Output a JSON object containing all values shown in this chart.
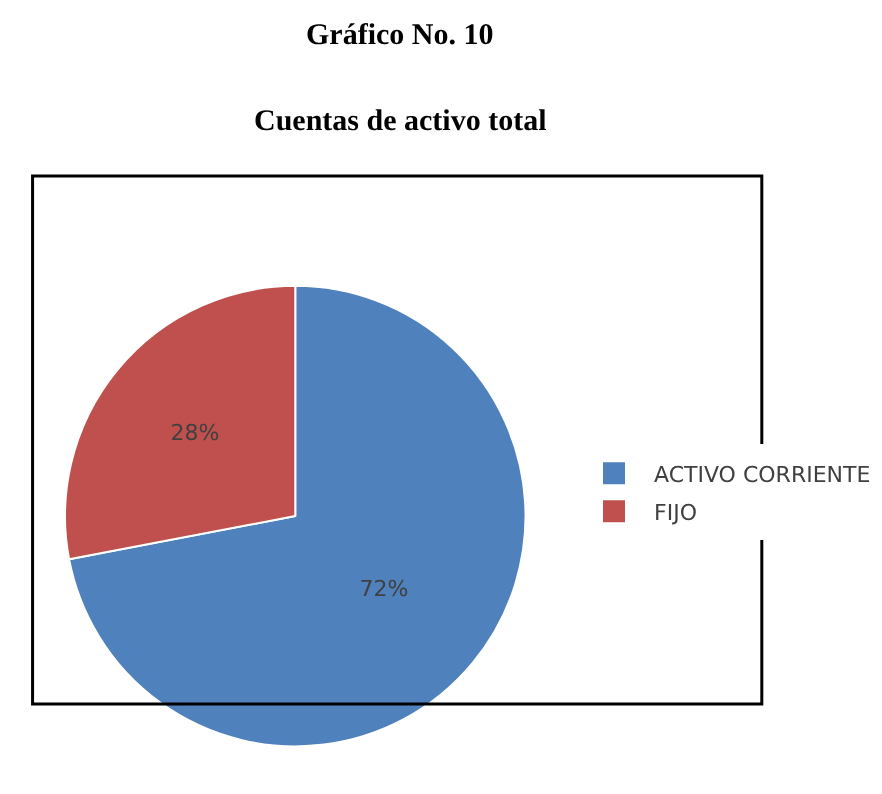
{
  "chart_data": {
    "type": "pie",
    "title": "Gráfico No. 10",
    "subtitle": "Cuentas de activo total",
    "categories": [
      "ACTIVO CORRIENTE",
      "FIJO"
    ],
    "values": [
      72,
      28
    ],
    "colors": [
      "#4f81bd",
      "#c0504d"
    ],
    "value_labels": [
      "72%",
      "28%"
    ],
    "legend": "right"
  }
}
